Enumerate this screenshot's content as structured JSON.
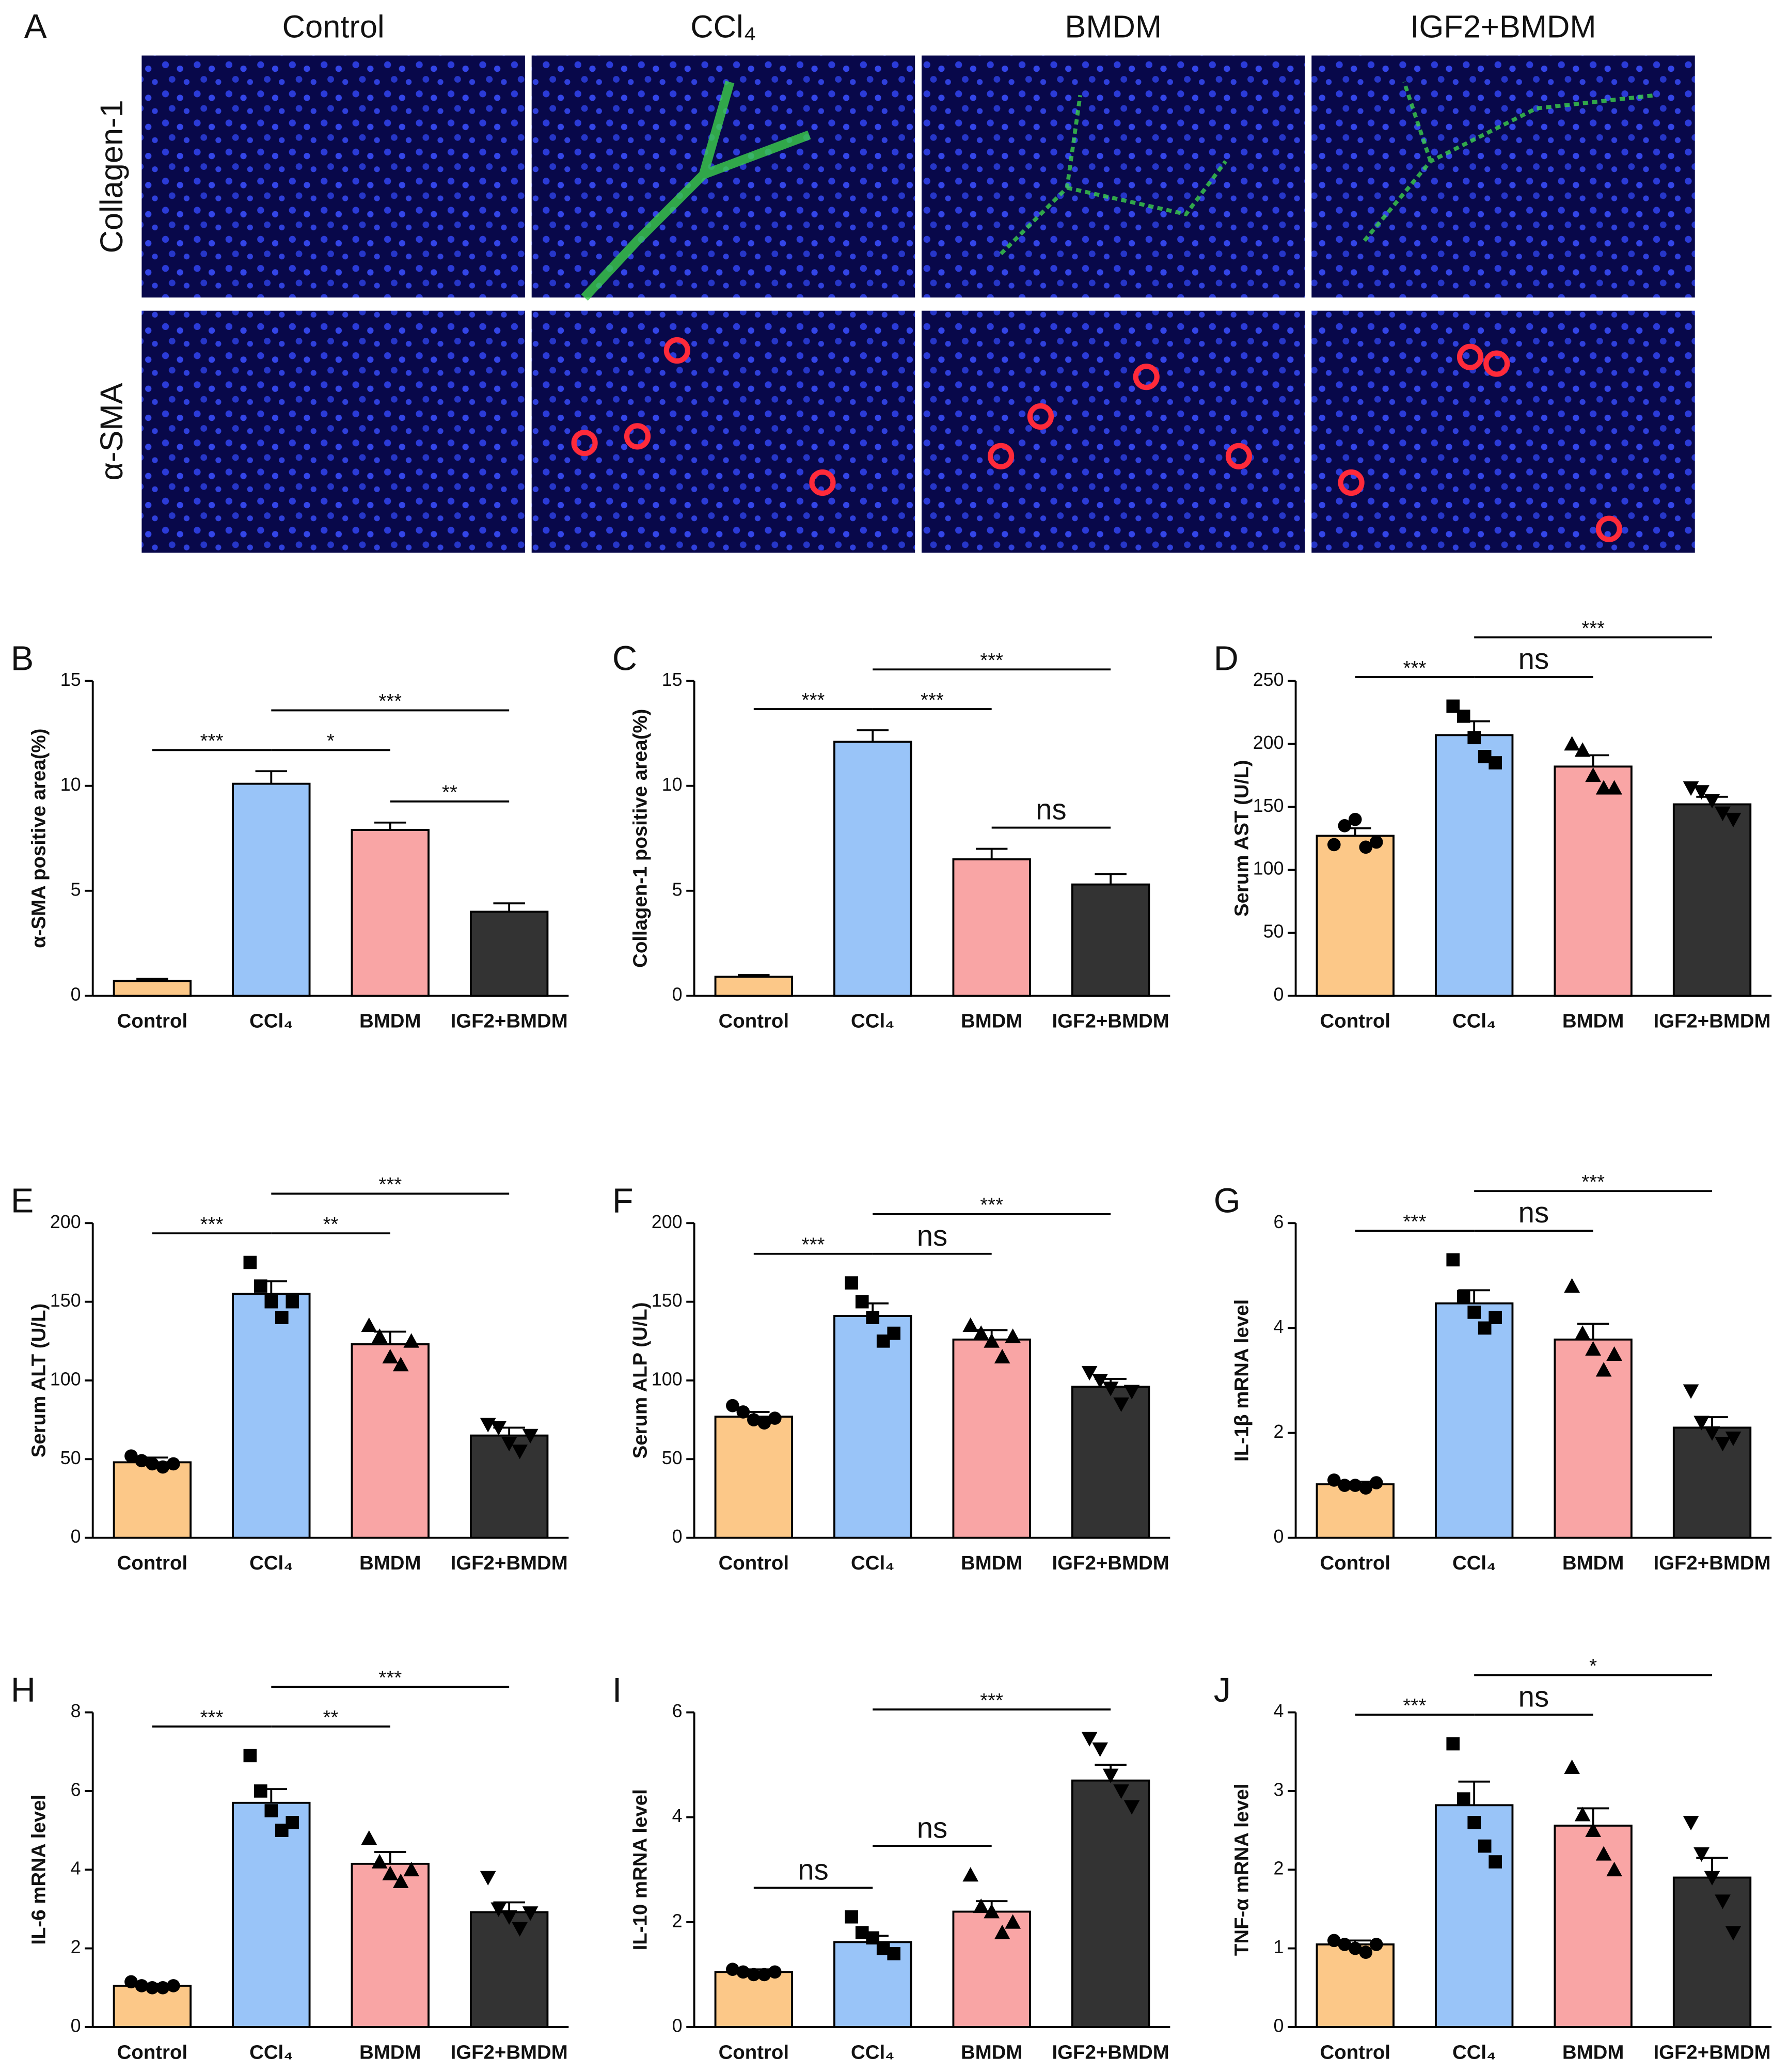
{
  "panel_a": {
    "label": "A",
    "columns": [
      "Control",
      "CCl₄",
      "BMDM",
      "IGF2+BMDM"
    ],
    "rows": [
      "Collagen-1",
      "α-SMA"
    ]
  },
  "chart_data": [
    {
      "type": "bar",
      "panel": "B",
      "y_label": "α-SMA positive area(%)",
      "categories": [
        "Control",
        "CCl₄",
        "BMDM",
        "IGF2+BMDM"
      ],
      "colors": [
        "#fcc888",
        "#99c4f8",
        "#f9a5a5",
        "#333333"
      ],
      "values": [
        0.7,
        10.1,
        7.9,
        4.0
      ],
      "errors": [
        0.1,
        0.6,
        0.35,
        0.4
      ],
      "ylim": [
        0,
        15
      ],
      "yticks": [
        0,
        5,
        10,
        15
      ],
      "significance": [
        {
          "between": [
            "Control",
            "CCl₄"
          ],
          "label": "***"
        },
        {
          "between": [
            "CCl₄",
            "BMDM"
          ],
          "label": "*"
        },
        {
          "between": [
            "BMDM",
            "IGF2+BMDM"
          ],
          "label": "**"
        },
        {
          "between": [
            "CCl₄",
            "IGF2+BMDM"
          ],
          "label": "***"
        }
      ]
    },
    {
      "type": "bar",
      "panel": "C",
      "y_label": "Collagen-1 positive area(%)",
      "categories": [
        "Control",
        "CCl₄",
        "BMDM",
        "IGF2+BMDM"
      ],
      "colors": [
        "#fcc888",
        "#99c4f8",
        "#f9a5a5",
        "#333333"
      ],
      "values": [
        0.9,
        12.1,
        6.5,
        5.3
      ],
      "errors": [
        0.08,
        0.55,
        0.5,
        0.5
      ],
      "ylim": [
        0,
        15
      ],
      "yticks": [
        0,
        5,
        10,
        15
      ],
      "significance": [
        {
          "between": [
            "Control",
            "CCl₄"
          ],
          "label": "***"
        },
        {
          "between": [
            "CCl₄",
            "BMDM"
          ],
          "label": "***"
        },
        {
          "between": [
            "BMDM",
            "IGF2+BMDM"
          ],
          "label": "ns"
        },
        {
          "between": [
            "CCl₄",
            "IGF2+BMDM"
          ],
          "label": "***"
        }
      ]
    },
    {
      "type": "bar",
      "panel": "D",
      "y_label": "Serum AST (U/L)",
      "categories": [
        "Control",
        "CCl₄",
        "BMDM",
        "IGF2+BMDM"
      ],
      "colors": [
        "#fcc888",
        "#99c4f8",
        "#f9a5a5",
        "#333333"
      ],
      "markers": [
        "circle",
        "square",
        "triangle",
        "triangle-down"
      ],
      "values": [
        127,
        207,
        182,
        152
      ],
      "errors": [
        6,
        11,
        9,
        6
      ],
      "points": [
        [
          120,
          135,
          140,
          118,
          122
        ],
        [
          230,
          222,
          205,
          190,
          185
        ],
        [
          200,
          195,
          175,
          165,
          165
        ],
        [
          165,
          162,
          155,
          145,
          140
        ]
      ],
      "ylim": [
        0,
        250
      ],
      "yticks": [
        0,
        50,
        100,
        150,
        200,
        250
      ],
      "significance": [
        {
          "between": [
            "Control",
            "CCl₄"
          ],
          "label": "***"
        },
        {
          "between": [
            "CCl₄",
            "BMDM"
          ],
          "label": "ns"
        },
        {
          "between": [
            "CCl₄",
            "IGF2+BMDM"
          ],
          "label": "***"
        }
      ]
    },
    {
      "type": "bar",
      "panel": "E",
      "y_label": "Serum ALT (U/L)",
      "categories": [
        "Control",
        "CCl₄",
        "BMDM",
        "IGF2+BMDM"
      ],
      "colors": [
        "#fcc888",
        "#99c4f8",
        "#f9a5a5",
        "#333333"
      ],
      "markers": [
        "circle",
        "square",
        "triangle",
        "triangle-down"
      ],
      "values": [
        48,
        155,
        123,
        65
      ],
      "errors": [
        3,
        8,
        8,
        5
      ],
      "points": [
        [
          52,
          49,
          47,
          45,
          47
        ],
        [
          175,
          160,
          150,
          140,
          150
        ],
        [
          135,
          128,
          115,
          110,
          125
        ],
        [
          72,
          70,
          60,
          55,
          65
        ]
      ],
      "ylim": [
        0,
        200
      ],
      "yticks": [
        0,
        50,
        100,
        150,
        200
      ],
      "significance": [
        {
          "between": [
            "Control",
            "CCl₄"
          ],
          "label": "***"
        },
        {
          "between": [
            "CCl₄",
            "BMDM"
          ],
          "label": "**"
        },
        {
          "between": [
            "CCl₄",
            "IGF2+BMDM"
          ],
          "label": "***"
        }
      ]
    },
    {
      "type": "bar",
      "panel": "F",
      "y_label": "Serum ALP (U/L)",
      "categories": [
        "Control",
        "CCl₄",
        "BMDM",
        "IGF2+BMDM"
      ],
      "colors": [
        "#fcc888",
        "#99c4f8",
        "#f9a5a5",
        "#333333"
      ],
      "markers": [
        "circle",
        "square",
        "triangle",
        "triangle-down"
      ],
      "values": [
        77,
        141,
        126,
        96
      ],
      "errors": [
        3,
        8,
        6,
        5
      ],
      "points": [
        [
          84,
          80,
          75,
          73,
          76
        ],
        [
          162,
          150,
          140,
          125,
          130
        ],
        [
          135,
          130,
          125,
          115,
          128
        ],
        [
          105,
          100,
          95,
          85,
          93
        ]
      ],
      "ylim": [
        0,
        200
      ],
      "yticks": [
        0,
        50,
        100,
        150,
        200
      ],
      "significance": [
        {
          "between": [
            "Control",
            "CCl₄"
          ],
          "label": "***"
        },
        {
          "between": [
            "CCl₄",
            "BMDM"
          ],
          "label": "ns"
        },
        {
          "between": [
            "CCl₄",
            "IGF2+BMDM"
          ],
          "label": "***"
        }
      ]
    },
    {
      "type": "bar",
      "panel": "G",
      "y_label": "IL-1β mRNA level",
      "categories": [
        "Control",
        "CCl₄",
        "BMDM",
        "IGF2+BMDM"
      ],
      "colors": [
        "#fcc888",
        "#99c4f8",
        "#f9a5a5",
        "#333333"
      ],
      "markers": [
        "circle",
        "square",
        "triangle",
        "triangle-down"
      ],
      "values": [
        1.02,
        4.47,
        3.78,
        2.1
      ],
      "errors": [
        0.05,
        0.25,
        0.3,
        0.2
      ],
      "points": [
        [
          1.1,
          1.0,
          1.0,
          0.95,
          1.05
        ],
        [
          5.3,
          4.6,
          4.3,
          4.0,
          4.2
        ],
        [
          4.8,
          3.9,
          3.6,
          3.2,
          3.5
        ],
        [
          2.8,
          2.2,
          2.0,
          1.8,
          1.9
        ]
      ],
      "ylim": [
        0,
        6
      ],
      "yticks": [
        0,
        2,
        4,
        6
      ],
      "significance": [
        {
          "between": [
            "Control",
            "CCl₄"
          ],
          "label": "***"
        },
        {
          "between": [
            "CCl₄",
            "BMDM"
          ],
          "label": "ns"
        },
        {
          "between": [
            "CCl₄",
            "IGF2+BMDM"
          ],
          "label": "***"
        }
      ]
    },
    {
      "type": "bar",
      "panel": "H",
      "y_label": "IL-6 mRNA level",
      "categories": [
        "Control",
        "CCl₄",
        "BMDM",
        "IGF2+BMDM"
      ],
      "colors": [
        "#fcc888",
        "#99c4f8",
        "#f9a5a5",
        "#333333"
      ],
      "markers": [
        "circle",
        "square",
        "triangle",
        "triangle-down"
      ],
      "values": [
        1.05,
        5.7,
        4.15,
        2.92
      ],
      "errors": [
        0.05,
        0.35,
        0.3,
        0.25
      ],
      "points": [
        [
          1.15,
          1.05,
          1.0,
          1.0,
          1.05
        ],
        [
          6.9,
          6.0,
          5.5,
          5.0,
          5.2
        ],
        [
          4.8,
          4.2,
          3.9,
          3.7,
          4.0
        ],
        [
          3.8,
          3.0,
          2.8,
          2.5,
          2.9
        ]
      ],
      "ylim": [
        0,
        8
      ],
      "yticks": [
        0,
        2,
        4,
        6,
        8
      ],
      "significance": [
        {
          "between": [
            "Control",
            "CCl₄"
          ],
          "label": "***"
        },
        {
          "between": [
            "CCl₄",
            "BMDM"
          ],
          "label": "**"
        },
        {
          "between": [
            "CCl₄",
            "IGF2+BMDM"
          ],
          "label": "***"
        }
      ]
    },
    {
      "type": "bar",
      "panel": "I",
      "y_label": "IL-10 mRNA level",
      "categories": [
        "Control",
        "CCl₄",
        "BMDM",
        "IGF2+BMDM"
      ],
      "colors": [
        "#fcc888",
        "#99c4f8",
        "#f9a5a5",
        "#333333"
      ],
      "markers": [
        "circle",
        "square",
        "triangle",
        "triangle-down"
      ],
      "values": [
        1.05,
        1.62,
        2.2,
        4.7
      ],
      "errors": [
        0.05,
        0.12,
        0.2,
        0.3
      ],
      "points": [
        [
          1.1,
          1.05,
          1.0,
          1.0,
          1.05
        ],
        [
          2.1,
          1.8,
          1.7,
          1.5,
          1.4
        ],
        [
          2.9,
          2.3,
          2.2,
          1.8,
          2.0
        ],
        [
          5.5,
          5.3,
          4.8,
          4.5,
          4.2
        ]
      ],
      "ylim": [
        0,
        6
      ],
      "yticks": [
        0,
        2,
        4,
        6
      ],
      "significance": [
        {
          "between": [
            "Control",
            "CCl₄"
          ],
          "label": "ns"
        },
        {
          "between": [
            "CCl₄",
            "BMDM"
          ],
          "label": "ns"
        },
        {
          "between": [
            "CCl₄",
            "IGF2+BMDM"
          ],
          "label": "***"
        }
      ]
    },
    {
      "type": "bar",
      "panel": "J",
      "y_label": "TNF-α mRNA level",
      "categories": [
        "Control",
        "CCl₄",
        "BMDM",
        "IGF2+BMDM"
      ],
      "colors": [
        "#fcc888",
        "#99c4f8",
        "#f9a5a5",
        "#333333"
      ],
      "markers": [
        "circle",
        "square",
        "triangle",
        "triangle-down"
      ],
      "values": [
        1.05,
        2.82,
        2.56,
        1.9
      ],
      "errors": [
        0.05,
        0.3,
        0.22,
        0.25
      ],
      "points": [
        [
          1.1,
          1.05,
          1.0,
          0.95,
          1.05
        ],
        [
          3.6,
          2.9,
          2.6,
          2.3,
          2.1
        ],
        [
          3.3,
          2.7,
          2.5,
          2.2,
          2.0
        ],
        [
          2.6,
          2.2,
          1.9,
          1.6,
          1.2
        ]
      ],
      "ylim": [
        0,
        4
      ],
      "yticks": [
        0,
        1,
        2,
        3,
        4
      ],
      "significance": [
        {
          "between": [
            "Control",
            "CCl₄"
          ],
          "label": "***"
        },
        {
          "between": [
            "CCl₄",
            "BMDM"
          ],
          "label": "ns"
        },
        {
          "between": [
            "CCl₄",
            "IGF2+BMDM"
          ],
          "label": "*"
        }
      ]
    }
  ]
}
